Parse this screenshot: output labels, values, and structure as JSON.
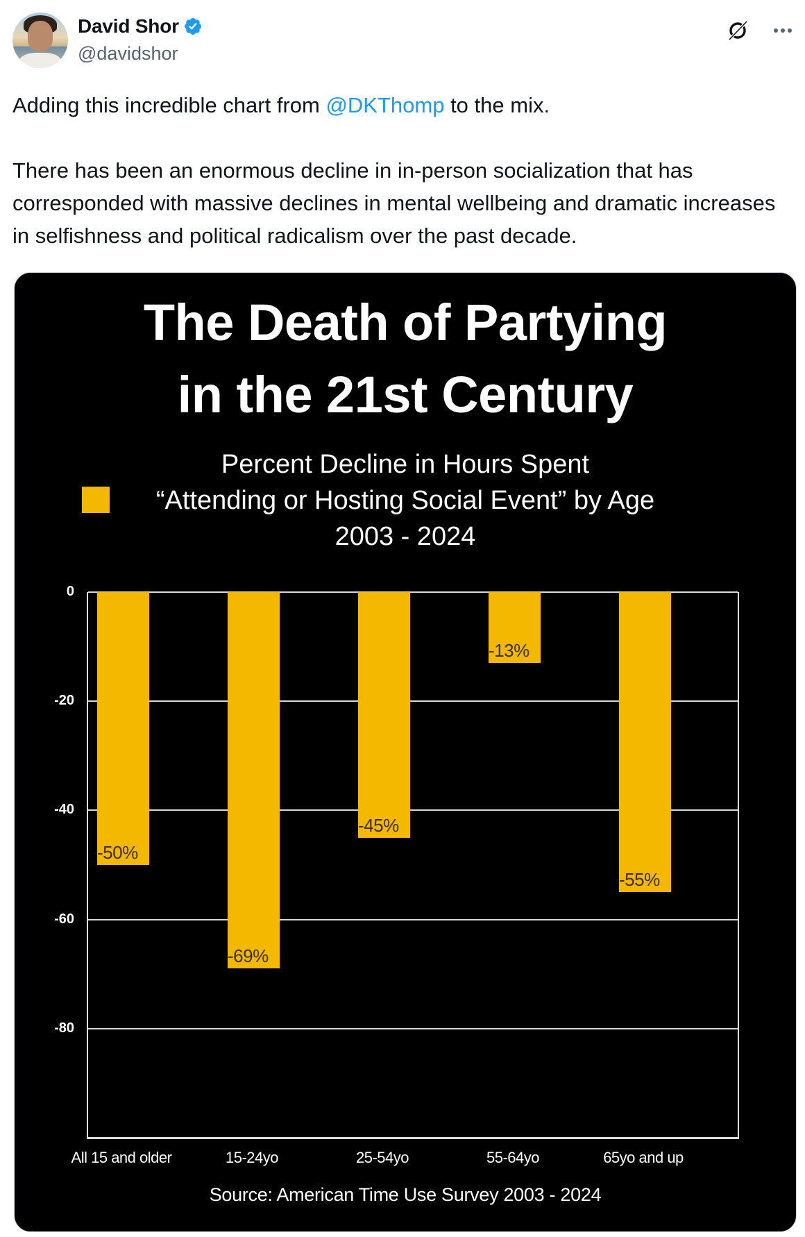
{
  "author": {
    "display_name": "David Shor",
    "handle": "@davidshor",
    "verified": true,
    "badge_color": "#1d9bf0",
    "avatar_icon": "profile-photo"
  },
  "actions": {
    "grok_icon": "grok-icon",
    "more_icon": "more-icon"
  },
  "tweet": {
    "paragraph1_before": "Adding this incredible chart from ",
    "mention": "@DKThomp",
    "paragraph1_after": " to the mix.",
    "paragraph2": "There has been an enormous decline in in-person socialization that has corresponded  with massive declines in mental wellbeing and dramatic increases in selfishness and political radicalism over the past decade."
  },
  "chart_image": {
    "title_line1": "The Death of Partying",
    "title_line2": "in the 21st Century",
    "subtitle_line1": "Percent Decline in Hours Spent",
    "subtitle_line2": "“Attending or Hosting Social Event” by Age",
    "subtitle_line3": "2003 - 2024",
    "source": "Source: American Time Use Survey 2003 - 2024",
    "bar_color": "#f5b800"
  },
  "chart_data": {
    "type": "bar",
    "title": "The Death of Partying in the 21st Century",
    "subtitle": "Percent Decline in Hours Spent “Attending or Hosting Social Event” by Age 2003 - 2024",
    "categories": [
      "All 15 and older",
      "15-24yo",
      "25-54yo",
      "55-64yo",
      "65yo and up"
    ],
    "values": [
      -50,
      -69,
      -45,
      -13,
      -55
    ],
    "data_labels": [
      "-50%",
      "-69%",
      "-45%",
      "-13%",
      "-55%"
    ],
    "series": [
      {
        "name": "“Attending or Hosting Social Event”",
        "values": [
          -50,
          -69,
          -45,
          -13,
          -55
        ]
      }
    ],
    "xlabel": "",
    "ylabel": "",
    "ylim": [
      -100,
      0
    ],
    "yticks": [
      "0",
      "-20",
      "-40",
      "-60",
      "-80"
    ],
    "grid": true,
    "legend_position": "top-left (beside subtitle)",
    "source": "Source: American Time Use Survey 2003 - 2024"
  }
}
